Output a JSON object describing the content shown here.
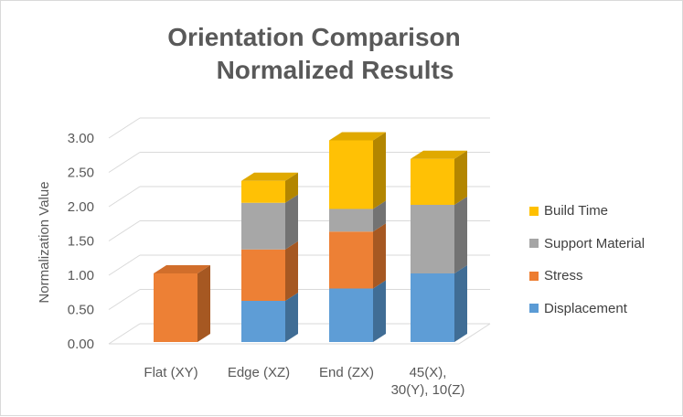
{
  "title": [
    "Orientation Comparison",
    "Normalized Results"
  ],
  "chart_data": {
    "type": "bar",
    "stacked": true,
    "three_d": true,
    "title": "Orientation Comparison Normalized Results",
    "xlabel": "",
    "ylabel": "Normalization Value",
    "ylim": [
      0,
      3.0
    ],
    "yticks": [
      "0.00",
      "0.50",
      "1.00",
      "1.50",
      "2.00",
      "2.50",
      "3.00"
    ],
    "grid": true,
    "legend_position": "right",
    "categories": [
      [
        "Flat (XY)"
      ],
      [
        "Edge (XZ)"
      ],
      [
        "End (ZX)"
      ],
      [
        "45(X),",
        "30(Y), 10(Z)"
      ]
    ],
    "series": [
      {
        "name": "Displacement",
        "color": "#5b9bd5",
        "values": [
          0,
          0.6,
          0.78,
          1.0
        ]
      },
      {
        "name": "Stress",
        "color": "#ed7d31",
        "values": [
          1.0,
          0.75,
          0.83,
          0
        ]
      },
      {
        "name": "Support Material",
        "color": "#a5a5a5",
        "values": [
          0,
          0.68,
          0.33,
          1.0
        ]
      },
      {
        "name": "Build Time",
        "color": "#ffc000",
        "values": [
          0,
          0.32,
          1.0,
          0.67
        ]
      }
    ]
  }
}
